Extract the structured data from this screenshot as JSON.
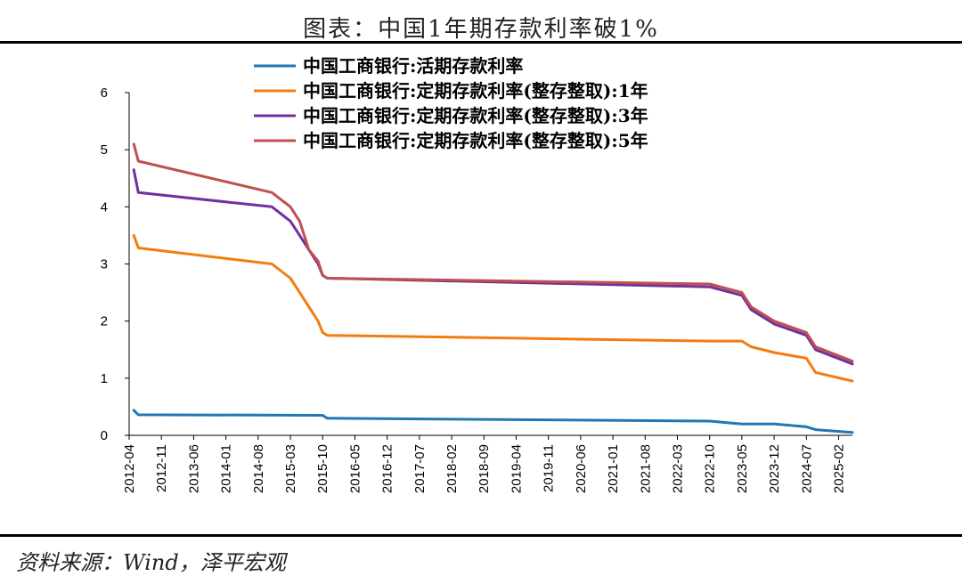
{
  "title": "图表：中国1年期存款利率破1%",
  "source": "资料来源：Wind，泽平宏观",
  "chart_data": {
    "type": "line",
    "x_ticks": [
      "2012-04",
      "2012-11",
      "2013-06",
      "2014-01",
      "2014-08",
      "2015-03",
      "2015-10",
      "2016-05",
      "2016-12",
      "2017-07",
      "2018-02",
      "2018-09",
      "2019-04",
      "2019-11",
      "2020-06",
      "2021-01",
      "2021-08",
      "2022-03",
      "2022-10",
      "2023-05",
      "2023-12",
      "2024-07",
      "2025-02"
    ],
    "x_range": [
      "2012-04",
      "2025-05"
    ],
    "ylim": [
      0,
      6
    ],
    "y_ticks": [
      0,
      1,
      2,
      3,
      4,
      5,
      6
    ],
    "grid": false,
    "legend_position": "top",
    "series": [
      {
        "name": "中国工商银行:活期存款利率",
        "color": "#1f77b4",
        "points": [
          [
            "2012-05",
            0.44
          ],
          [
            "2012-06",
            0.36
          ],
          [
            "2015-10",
            0.35
          ],
          [
            "2015-11",
            0.3
          ],
          [
            "2022-10",
            0.25
          ],
          [
            "2023-05",
            0.2
          ],
          [
            "2023-12",
            0.2
          ],
          [
            "2024-07",
            0.15
          ],
          [
            "2024-09",
            0.1
          ],
          [
            "2025-05",
            0.05
          ]
        ]
      },
      {
        "name": "中国工商银行:定期存款利率(整存整取):1年",
        "color": "#f47c0f",
        "points": [
          [
            "2012-05",
            3.5
          ],
          [
            "2012-06",
            3.28
          ],
          [
            "2014-11",
            3.0
          ],
          [
            "2015-03",
            2.75
          ],
          [
            "2015-05",
            2.5
          ],
          [
            "2015-07",
            2.25
          ],
          [
            "2015-09",
            2.0
          ],
          [
            "2015-10",
            1.8
          ],
          [
            "2015-11",
            1.75
          ],
          [
            "2022-10",
            1.65
          ],
          [
            "2023-05",
            1.65
          ],
          [
            "2023-07",
            1.55
          ],
          [
            "2023-12",
            1.45
          ],
          [
            "2024-07",
            1.35
          ],
          [
            "2024-09",
            1.1
          ],
          [
            "2025-05",
            0.95
          ]
        ]
      },
      {
        "name": "中国工商银行:定期存款利率(整存整取):3年",
        "color": "#7030a0",
        "points": [
          [
            "2012-05",
            4.65
          ],
          [
            "2012-06",
            4.25
          ],
          [
            "2014-11",
            4.0
          ],
          [
            "2015-03",
            3.75
          ],
          [
            "2015-05",
            3.5
          ],
          [
            "2015-07",
            3.25
          ],
          [
            "2015-09",
            3.0
          ],
          [
            "2015-10",
            2.8
          ],
          [
            "2015-11",
            2.75
          ],
          [
            "2022-10",
            2.6
          ],
          [
            "2023-05",
            2.45
          ],
          [
            "2023-07",
            2.2
          ],
          [
            "2023-12",
            1.95
          ],
          [
            "2024-07",
            1.75
          ],
          [
            "2024-09",
            1.5
          ],
          [
            "2025-05",
            1.25
          ]
        ]
      },
      {
        "name": "中国工商银行:定期存款利率(整存整取):5年",
        "color": "#c0504d",
        "points": [
          [
            "2012-05",
            5.1
          ],
          [
            "2012-06",
            4.8
          ],
          [
            "2014-11",
            4.25
          ],
          [
            "2015-03",
            4.0
          ],
          [
            "2015-05",
            3.75
          ],
          [
            "2015-07",
            3.25
          ],
          [
            "2015-09",
            3.05
          ],
          [
            "2015-10",
            2.8
          ],
          [
            "2015-11",
            2.75
          ],
          [
            "2022-10",
            2.65
          ],
          [
            "2023-05",
            2.5
          ],
          [
            "2023-07",
            2.25
          ],
          [
            "2023-12",
            2.0
          ],
          [
            "2024-07",
            1.8
          ],
          [
            "2024-09",
            1.55
          ],
          [
            "2025-05",
            1.3
          ]
        ]
      }
    ]
  }
}
